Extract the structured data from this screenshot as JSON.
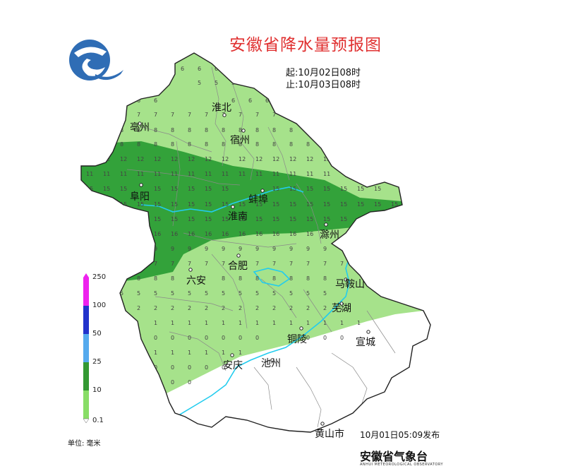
{
  "header": {
    "title": "安徽省降水量预报图",
    "start_time": "起:10月02日08时",
    "end_time": "止:10月03日08时"
  },
  "footer": {
    "issued": "10月01日05:09发布",
    "agency": "安徽省气象台",
    "agency_en": "ANHUI METEOROLOGICAL OBSERVATORY"
  },
  "legend": {
    "unit": "单位: 毫米",
    "levels": [
      {
        "label": "250",
        "color": "#ee22ee"
      },
      {
        "label": "100",
        "color": "#2233cc"
      },
      {
        "label": "50",
        "color": "#55aaee"
      },
      {
        "label": "25",
        "color": "#339933"
      },
      {
        "label": "10",
        "color": "#88dd66"
      },
      {
        "label": "0.1",
        "color": "#ffffff"
      }
    ]
  },
  "cities": [
    {
      "name": "淮北"
    },
    {
      "name": "亳州"
    },
    {
      "name": "宿州"
    },
    {
      "name": "阜阳"
    },
    {
      "name": "蚌埠"
    },
    {
      "name": "淮南"
    },
    {
      "name": "滁州"
    },
    {
      "name": "合肥"
    },
    {
      "name": "六安"
    },
    {
      "name": "马鞍山"
    },
    {
      "name": "芜湖"
    },
    {
      "name": "铜陵"
    },
    {
      "name": "宣城"
    },
    {
      "name": "安庆"
    },
    {
      "name": "池州"
    },
    {
      "name": "黄山市"
    }
  ],
  "colors": {
    "light_green": "#a6e28b",
    "dark_green": "#33a23a",
    "river": "#22ccee",
    "border": "#222222"
  }
}
